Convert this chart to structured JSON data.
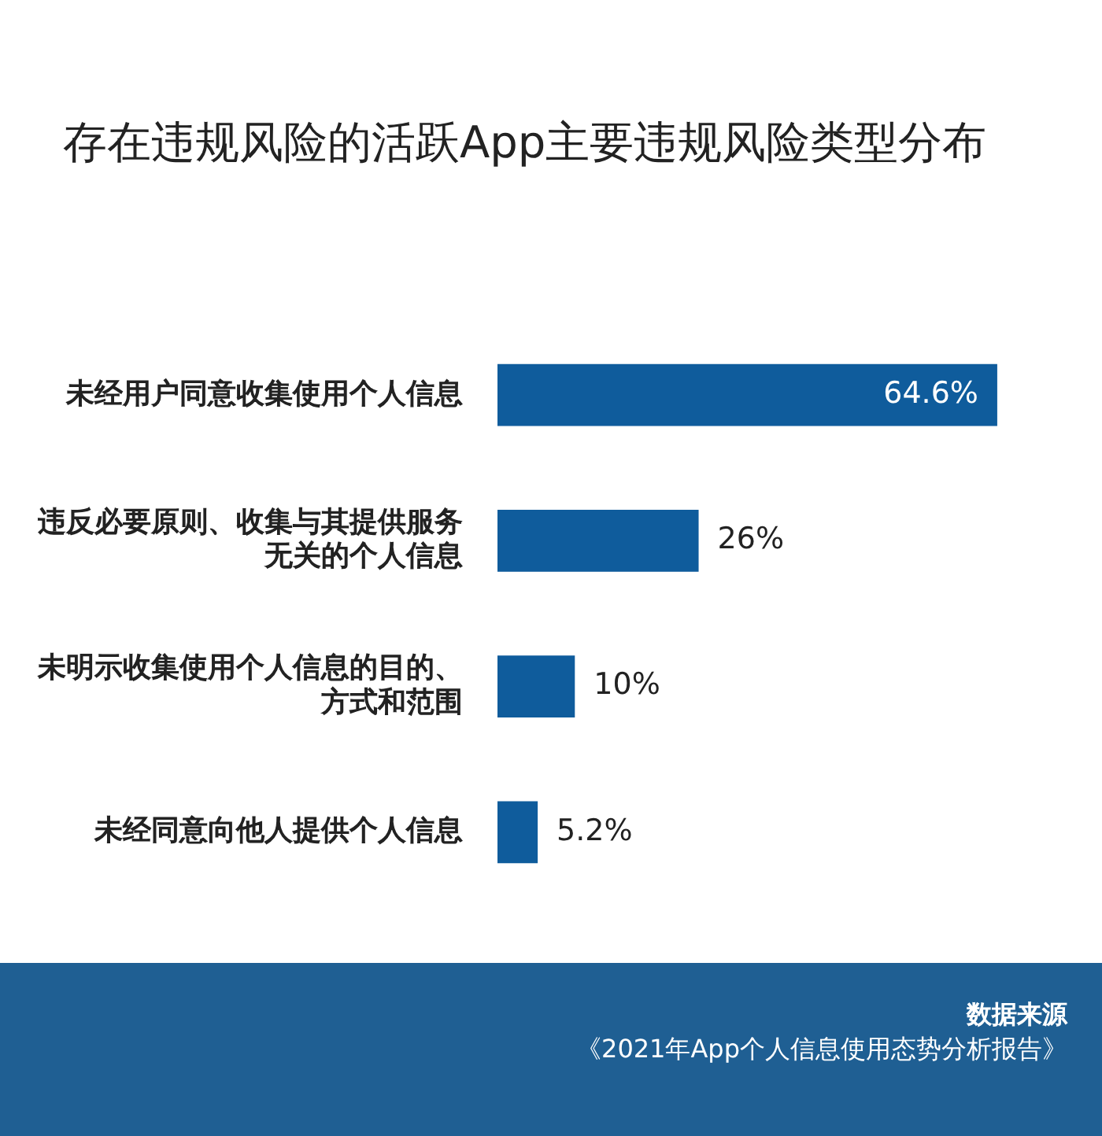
{
  "chart_data": {
    "type": "bar",
    "orientation": "horizontal",
    "title": "存在违规风险的活跃App主要违规风险类型分布",
    "categories": [
      "未经用户同意收集使用个人信息",
      "违反必要原则、收集与其提供服务无关的个人信息",
      "未明示收集使用个人信息的目的、方式和范围",
      "未经同意向他人提供个人信息"
    ],
    "values": [
      64.6,
      26,
      10,
      5.2
    ],
    "color": "#0f5c9c",
    "value_labels": [
      "64.6%",
      "26%",
      "10%",
      "5.2%"
    ],
    "tick_labels": "y",
    "legend": false,
    "annotations": [
      "数据来源",
      "《2021年App个人信息使用态势分析报告》"
    ]
  }
}
